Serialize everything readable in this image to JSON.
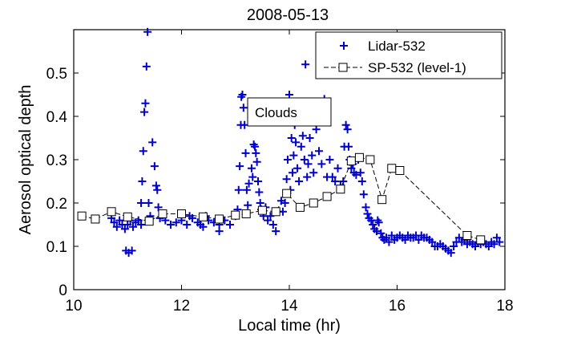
{
  "chart_data": {
    "type": "scatter",
    "title": "2008-05-13",
    "xlabel": "Local time (hr)",
    "ylabel": "Aerosol optical depth",
    "xlim": [
      10,
      18
    ],
    "ylim": [
      0,
      0.6
    ],
    "xticks": [
      10,
      12,
      14,
      16,
      18
    ],
    "yticks": [
      0,
      0.1,
      0.2,
      0.3,
      0.4,
      0.5
    ],
    "grid": false,
    "legend_position": "top-right",
    "annotations": [
      {
        "text": "Clouds",
        "x": 13.75,
        "y": 0.41
      }
    ],
    "series": [
      {
        "name": "Lidar-532",
        "marker": "plus",
        "color": "#0000cc",
        "line": "none",
        "points": [
          [
            10.7,
            0.165
          ],
          [
            10.75,
            0.155
          ],
          [
            10.8,
            0.145
          ],
          [
            10.85,
            0.16
          ],
          [
            10.9,
            0.15
          ],
          [
            10.95,
            0.14
          ],
          [
            11.0,
            0.15
          ],
          [
            11.05,
            0.16
          ],
          [
            11.1,
            0.145
          ],
          [
            11.15,
            0.155
          ],
          [
            11.2,
            0.16
          ],
          [
            11.25,
            0.15
          ],
          [
            10.97,
            0.09
          ],
          [
            11.02,
            0.085
          ],
          [
            11.08,
            0.09
          ],
          [
            11.25,
            0.2
          ],
          [
            11.27,
            0.25
          ],
          [
            11.29,
            0.32
          ],
          [
            11.31,
            0.41
          ],
          [
            11.33,
            0.43
          ],
          [
            11.35,
            0.515
          ],
          [
            11.37,
            0.595
          ],
          [
            11.39,
            0.2
          ],
          [
            11.42,
            0.17
          ],
          [
            11.46,
            0.34
          ],
          [
            11.5,
            0.285
          ],
          [
            11.53,
            0.24
          ],
          [
            11.55,
            0.23
          ],
          [
            11.57,
            0.19
          ],
          [
            11.6,
            0.165
          ],
          [
            11.7,
            0.16
          ],
          [
            11.8,
            0.15
          ],
          [
            11.9,
            0.155
          ],
          [
            12.0,
            0.16
          ],
          [
            12.1,
            0.15
          ],
          [
            12.2,
            0.165
          ],
          [
            12.3,
            0.155
          ],
          [
            12.4,
            0.145
          ],
          [
            12.5,
            0.16
          ],
          [
            12.6,
            0.155
          ],
          [
            12.7,
            0.15
          ],
          [
            12.8,
            0.16
          ],
          [
            12.9,
            0.15
          ],
          [
            12.45,
            0.17
          ],
          [
            12.15,
            0.17
          ],
          [
            12.35,
            0.15
          ],
          [
            12.7,
            0.135
          ],
          [
            13.0,
            0.17
          ],
          [
            13.04,
            0.185
          ],
          [
            13.06,
            0.23
          ],
          [
            13.08,
            0.285
          ],
          [
            13.1,
            0.38
          ],
          [
            13.11,
            0.445
          ],
          [
            13.13,
            0.45
          ],
          [
            13.15,
            0.42
          ],
          [
            13.17,
            0.38
          ],
          [
            13.19,
            0.315
          ],
          [
            13.21,
            0.23
          ],
          [
            13.23,
            0.195
          ],
          [
            13.25,
            0.245
          ],
          [
            13.3,
            0.28
          ],
          [
            13.32,
            0.26
          ],
          [
            13.34,
            0.335
          ],
          [
            13.36,
            0.33
          ],
          [
            13.38,
            0.315
          ],
          [
            13.4,
            0.295
          ],
          [
            13.42,
            0.25
          ],
          [
            13.44,
            0.225
          ],
          [
            13.46,
            0.2
          ],
          [
            13.48,
            0.185
          ],
          [
            13.52,
            0.17
          ],
          [
            13.56,
            0.19
          ],
          [
            13.6,
            0.16
          ],
          [
            13.65,
            0.17
          ],
          [
            13.7,
            0.15
          ],
          [
            13.75,
            0.135
          ],
          [
            13.8,
            0.18
          ],
          [
            13.85,
            0.205
          ],
          [
            13.88,
            0.18
          ],
          [
            13.92,
            0.2
          ],
          [
            13.95,
            0.255
          ],
          [
            13.97,
            0.3
          ],
          [
            14.0,
            0.45
          ],
          [
            14.02,
            0.23
          ],
          [
            14.04,
            0.35
          ],
          [
            14.06,
            0.27
          ],
          [
            14.08,
            0.31
          ],
          [
            14.1,
            0.38
          ],
          [
            14.12,
            0.34
          ],
          [
            14.15,
            0.28
          ],
          [
            14.18,
            0.25
          ],
          [
            14.2,
            0.41
          ],
          [
            14.22,
            0.33
          ],
          [
            14.25,
            0.355
          ],
          [
            14.28,
            0.3
          ],
          [
            14.3,
            0.52
          ],
          [
            14.33,
            0.26
          ],
          [
            14.35,
            0.29
          ],
          [
            14.38,
            0.35
          ],
          [
            14.42,
            0.31
          ],
          [
            14.45,
            0.27
          ],
          [
            14.5,
            0.37
          ],
          [
            14.55,
            0.32
          ],
          [
            14.6,
            0.29
          ],
          [
            14.65,
            0.44
          ],
          [
            14.7,
            0.26
          ],
          [
            14.75,
            0.3
          ],
          [
            14.8,
            0.26
          ],
          [
            14.85,
            0.25
          ],
          [
            14.9,
            0.28
          ],
          [
            14.95,
            0.24
          ],
          [
            15.0,
            0.25
          ],
          [
            15.02,
            0.33
          ],
          [
            15.05,
            0.38
          ],
          [
            15.08,
            0.37
          ],
          [
            15.1,
            0.33
          ],
          [
            15.12,
            0.3
          ],
          [
            15.15,
            0.28
          ],
          [
            15.18,
            0.29
          ],
          [
            15.2,
            0.27
          ],
          [
            15.24,
            0.265
          ],
          [
            15.28,
            0.3
          ],
          [
            15.32,
            0.27
          ],
          [
            15.35,
            0.25
          ],
          [
            15.38,
            0.22
          ],
          [
            15.42,
            0.19
          ],
          [
            15.45,
            0.175
          ],
          [
            15.48,
            0.165
          ],
          [
            15.52,
            0.16
          ],
          [
            15.55,
            0.15
          ],
          [
            15.58,
            0.14
          ],
          [
            15.62,
            0.135
          ],
          [
            15.64,
            0.16
          ],
          [
            15.66,
            0.155
          ],
          [
            15.7,
            0.13
          ],
          [
            15.73,
            0.12
          ],
          [
            15.76,
            0.115
          ],
          [
            15.8,
            0.12
          ],
          [
            15.85,
            0.11
          ],
          [
            15.9,
            0.125
          ],
          [
            15.95,
            0.115
          ],
          [
            16.0,
            0.12
          ],
          [
            16.05,
            0.125
          ],
          [
            16.1,
            0.12
          ],
          [
            16.15,
            0.115
          ],
          [
            16.2,
            0.125
          ],
          [
            16.25,
            0.12
          ],
          [
            16.3,
            0.12
          ],
          [
            16.35,
            0.125
          ],
          [
            16.4,
            0.115
          ],
          [
            16.45,
            0.125
          ],
          [
            16.5,
            0.12
          ],
          [
            16.55,
            0.12
          ],
          [
            16.6,
            0.115
          ],
          [
            16.65,
            0.11
          ],
          [
            16.7,
            0.1
          ],
          [
            16.75,
            0.1
          ],
          [
            16.8,
            0.105
          ],
          [
            16.85,
            0.1
          ],
          [
            16.9,
            0.095
          ],
          [
            16.95,
            0.09
          ],
          [
            17.0,
            0.085
          ],
          [
            17.05,
            0.1
          ],
          [
            17.1,
            0.11
          ],
          [
            17.15,
            0.12
          ],
          [
            17.2,
            0.11
          ],
          [
            17.25,
            0.115
          ],
          [
            17.3,
            0.105
          ],
          [
            17.35,
            0.11
          ],
          [
            17.4,
            0.105
          ],
          [
            17.45,
            0.1
          ],
          [
            17.5,
            0.11
          ],
          [
            17.55,
            0.105
          ],
          [
            17.6,
            0.11
          ],
          [
            17.65,
            0.105
          ],
          [
            17.7,
            0.1
          ],
          [
            17.75,
            0.11
          ],
          [
            17.8,
            0.105
          ],
          [
            17.85,
            0.12
          ],
          [
            17.9,
            0.11
          ]
        ]
      },
      {
        "name": "SP-532 (level-1)",
        "marker": "square",
        "color": "#000000",
        "line": "dashed",
        "points": [
          [
            10.15,
            0.17
          ],
          [
            10.4,
            0.163
          ],
          [
            10.7,
            0.18
          ],
          [
            11.0,
            0.168
          ],
          [
            11.4,
            0.158
          ],
          [
            11.65,
            0.175
          ],
          [
            12.0,
            0.175
          ],
          [
            12.4,
            0.168
          ],
          [
            12.7,
            0.163
          ],
          [
            13.0,
            0.172
          ],
          [
            13.2,
            0.175
          ],
          [
            13.5,
            0.183
          ],
          [
            13.75,
            0.18
          ],
          [
            13.95,
            0.222
          ],
          [
            14.2,
            0.19
          ],
          [
            14.45,
            0.2
          ],
          [
            14.7,
            0.215
          ],
          [
            14.95,
            0.232
          ],
          [
            15.15,
            0.297
          ],
          [
            15.3,
            0.305
          ],
          [
            15.5,
            0.3
          ],
          [
            15.72,
            0.208
          ],
          [
            15.9,
            0.28
          ],
          [
            16.05,
            0.275
          ],
          [
            17.3,
            0.125
          ],
          [
            17.55,
            0.115
          ]
        ]
      }
    ]
  }
}
